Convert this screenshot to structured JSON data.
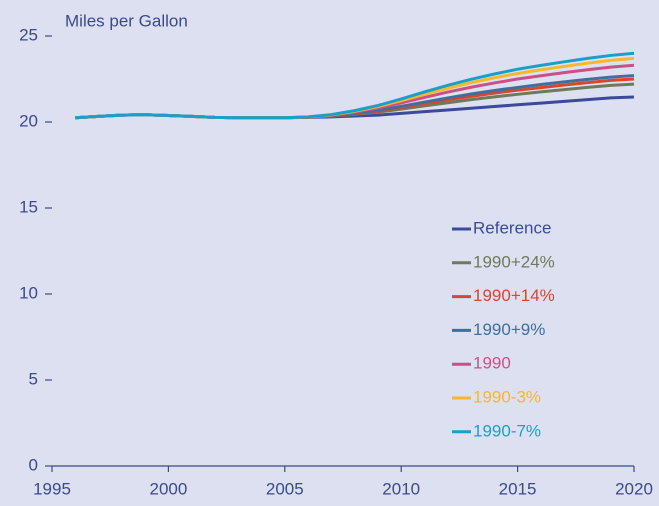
{
  "chart_data": {
    "type": "line",
    "ylabel": "Miles per Gallon",
    "x": [
      1996,
      1997,
      1998,
      1999,
      2000,
      2001,
      2002,
      2003,
      2004,
      2005,
      2006,
      2007,
      2008,
      2009,
      2010,
      2011,
      2012,
      2013,
      2014,
      2015,
      2016,
      2017,
      2018,
      2019,
      2020
    ],
    "series": [
      {
        "name": "Reference",
        "color": "#3b4a9a",
        "values": [
          20.25,
          20.33,
          20.4,
          20.42,
          20.38,
          20.33,
          20.27,
          20.25,
          20.25,
          20.25,
          20.27,
          20.3,
          20.35,
          20.4,
          20.5,
          20.6,
          20.7,
          20.8,
          20.9,
          21.0,
          21.1,
          21.2,
          21.3,
          21.4,
          21.45
        ]
      },
      {
        "name": "1990+24%",
        "color": "#6f7a5a",
        "values": [
          20.25,
          20.33,
          20.4,
          20.42,
          20.38,
          20.33,
          20.27,
          20.25,
          20.25,
          20.25,
          20.28,
          20.34,
          20.44,
          20.57,
          20.75,
          20.94,
          21.12,
          21.3,
          21.46,
          21.61,
          21.75,
          21.88,
          22.01,
          22.13,
          22.2
        ]
      },
      {
        "name": "1990+14%",
        "color": "#d9452f",
        "values": [
          20.25,
          20.33,
          20.4,
          20.42,
          20.38,
          20.33,
          20.27,
          20.25,
          20.25,
          20.25,
          20.28,
          20.35,
          20.48,
          20.63,
          20.85,
          21.07,
          21.29,
          21.49,
          21.68,
          21.85,
          22.0,
          22.15,
          22.29,
          22.42,
          22.5
        ]
      },
      {
        "name": "1990+9%",
        "color": "#3f6f9a",
        "values": [
          20.25,
          20.33,
          20.4,
          20.42,
          20.38,
          20.33,
          20.27,
          20.25,
          20.25,
          20.25,
          20.28,
          20.36,
          20.5,
          20.68,
          20.91,
          21.16,
          21.4,
          21.63,
          21.83,
          22.01,
          22.18,
          22.33,
          22.48,
          22.61,
          22.7
        ]
      },
      {
        "name": "1990",
        "color": "#cc4f88",
        "values": [
          20.25,
          20.33,
          20.4,
          20.42,
          20.38,
          20.33,
          20.27,
          20.25,
          20.25,
          20.25,
          20.29,
          20.39,
          20.57,
          20.81,
          21.11,
          21.43,
          21.74,
          22.02,
          22.27,
          22.5,
          22.69,
          22.87,
          23.04,
          23.19,
          23.3
        ]
      },
      {
        "name": "1990-3%",
        "color": "#f5b82a",
        "values": [
          20.25,
          20.33,
          20.4,
          20.42,
          20.38,
          20.33,
          20.27,
          20.25,
          20.25,
          20.25,
          20.29,
          20.41,
          20.62,
          20.9,
          21.24,
          21.61,
          21.96,
          22.29,
          22.57,
          22.82,
          23.04,
          23.23,
          23.42,
          23.58,
          23.7
        ]
      },
      {
        "name": "1990-7%",
        "color": "#1aa0c8",
        "values": [
          20.25,
          20.33,
          20.4,
          20.42,
          20.38,
          20.33,
          20.27,
          20.25,
          20.25,
          20.25,
          20.3,
          20.43,
          20.66,
          20.96,
          21.34,
          21.75,
          22.13,
          22.48,
          22.79,
          23.07,
          23.29,
          23.5,
          23.7,
          23.87,
          24.0
        ]
      }
    ],
    "xlim": [
      1995,
      2020
    ],
    "xticks": [
      1995,
      2000,
      2005,
      2010,
      2015,
      2020
    ],
    "ylim": [
      0,
      25
    ],
    "yticks": [
      0,
      5,
      10,
      15,
      20,
      25
    ],
    "grid": false,
    "legend": "right"
  }
}
